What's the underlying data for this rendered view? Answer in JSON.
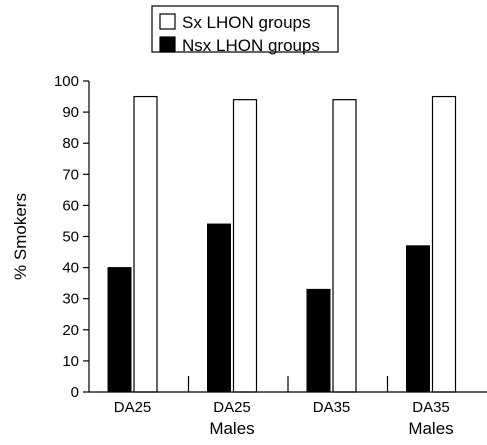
{
  "chart_data": {
    "type": "bar",
    "title": "",
    "xlabel": "",
    "ylabel": "% Smokers",
    "ylim": [
      0,
      100
    ],
    "yticks": [
      0,
      10,
      20,
      30,
      40,
      50,
      60,
      70,
      80,
      90,
      100
    ],
    "categories": [
      "DA25",
      "DA25",
      "DA35",
      "DA35"
    ],
    "category_sublabels": [
      "",
      "Males",
      "",
      "Males"
    ],
    "series": [
      {
        "name": "Nsx LHON groups",
        "values": [
          40,
          54,
          33,
          47
        ],
        "color": "#000000"
      },
      {
        "name": "Sx LHON groups",
        "values": [
          95,
          94,
          94,
          95
        ],
        "color": "#ffffff"
      }
    ],
    "legend": {
      "placement": "top-center",
      "order": [
        1,
        0
      ]
    },
    "grid": false
  }
}
